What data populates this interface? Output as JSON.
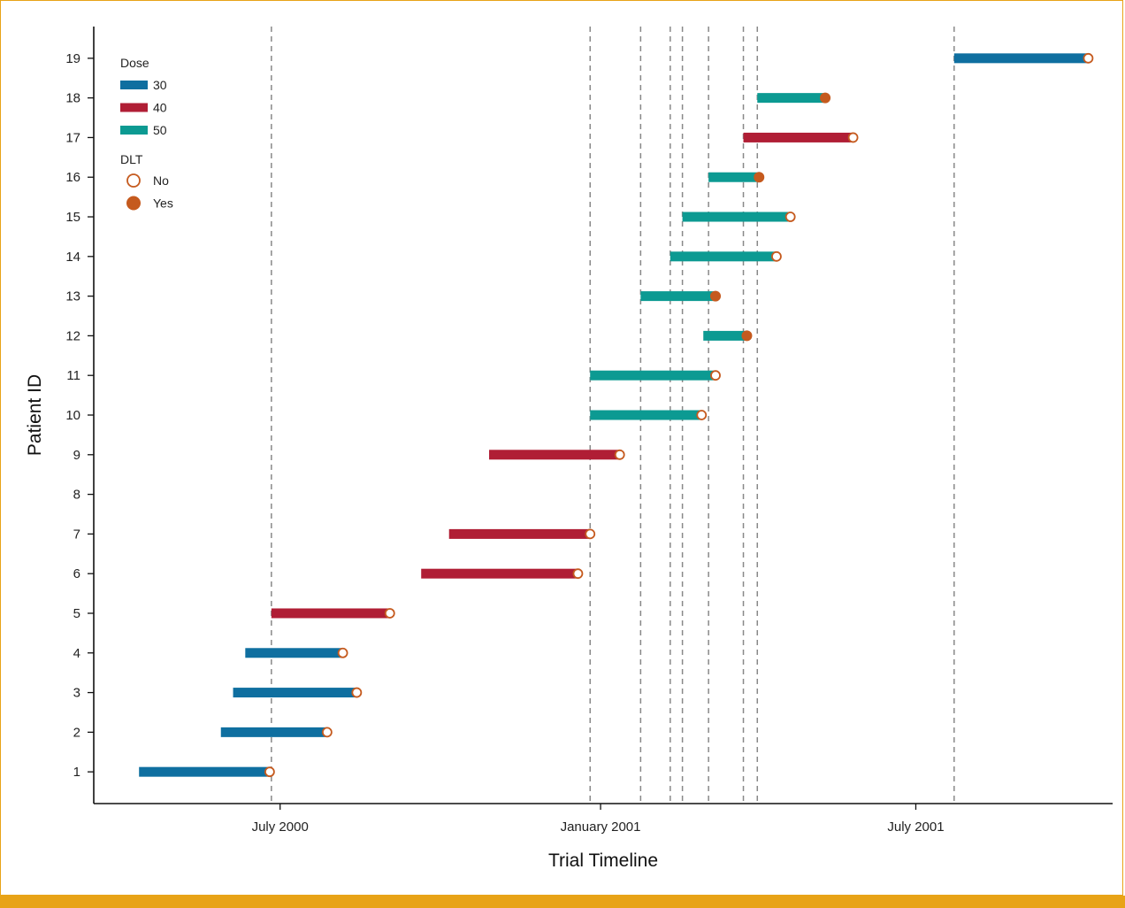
{
  "colors": {
    "frame": "#e8a317",
    "band": "#e8a317",
    "dose_30": "#0f6fa0",
    "dose_40": "#b01e35",
    "dose_50": "#0c9a92",
    "dlt_marker": "#c55a1e",
    "grid": "#888888"
  },
  "chart_data": {
    "type": "timeline",
    "xlabel": "Trial Timeline",
    "ylabel": "Patient ID",
    "x_ticks": [
      "July 2000",
      "January 2001",
      "July 2001"
    ],
    "x_tick_dates": [
      "2000-07-01",
      "2001-01-01",
      "2001-07-01"
    ],
    "xlim": [
      "2000-03-16",
      "2001-10-22"
    ],
    "ylim": [
      0.2,
      19.8
    ],
    "y_ticks": [
      "1",
      "2",
      "3",
      "4",
      "5",
      "6",
      "7",
      "8",
      "9",
      "10",
      "11",
      "12",
      "13",
      "14",
      "15",
      "16",
      "17",
      "18",
      "19"
    ],
    "vertical_reference_lines": [
      "2000-06-26",
      "2000-12-26",
      "2001-01-24",
      "2001-02-10",
      "2001-02-17",
      "2001-03-04",
      "2001-03-24",
      "2001-04-01",
      "2001-07-23"
    ],
    "legend": {
      "dose_title": "Dose",
      "dose_entries": [
        "30",
        "40",
        "50"
      ],
      "dlt_title": "DLT",
      "dlt_entries": [
        "No",
        "Yes"
      ],
      "placement": "top-left"
    },
    "patients": [
      {
        "id": "1",
        "dose": "30",
        "start": "2000-04-11",
        "end": "2000-06-25",
        "dlt": "No"
      },
      {
        "id": "2",
        "dose": "30",
        "start": "2000-05-28",
        "end": "2000-07-28",
        "dlt": "No"
      },
      {
        "id": "3",
        "dose": "30",
        "start": "2000-06-04",
        "end": "2000-08-14",
        "dlt": "No"
      },
      {
        "id": "4",
        "dose": "30",
        "start": "2000-06-11",
        "end": "2000-08-06",
        "dlt": "No"
      },
      {
        "id": "5",
        "dose": "40",
        "start": "2000-06-26",
        "end": "2000-09-02",
        "dlt": "No"
      },
      {
        "id": "6",
        "dose": "40",
        "start": "2000-09-20",
        "end": "2000-12-19",
        "dlt": "No"
      },
      {
        "id": "7",
        "dose": "40",
        "start": "2000-10-06",
        "end": "2000-12-26",
        "dlt": "No"
      },
      {
        "id": "8",
        "dose": "",
        "start": "",
        "end": "",
        "dlt": ""
      },
      {
        "id": "9",
        "dose": "40",
        "start": "2000-10-29",
        "end": "2001-01-12",
        "dlt": "No"
      },
      {
        "id": "10",
        "dose": "50",
        "start": "2000-12-26",
        "end": "2001-02-28",
        "dlt": "No"
      },
      {
        "id": "11",
        "dose": "50",
        "start": "2000-12-26",
        "end": "2001-03-08",
        "dlt": "No"
      },
      {
        "id": "12",
        "dose": "50",
        "start": "2001-03-01",
        "end": "2001-03-26",
        "dlt": "Yes"
      },
      {
        "id": "13",
        "dose": "50",
        "start": "2001-01-24",
        "end": "2001-03-08",
        "dlt": "Yes"
      },
      {
        "id": "14",
        "dose": "50",
        "start": "2001-02-10",
        "end": "2001-04-12",
        "dlt": "No"
      },
      {
        "id": "15",
        "dose": "50",
        "start": "2001-02-17",
        "end": "2001-04-20",
        "dlt": "No"
      },
      {
        "id": "16",
        "dose": "50",
        "start": "2001-03-04",
        "end": "2001-04-02",
        "dlt": "Yes"
      },
      {
        "id": "17",
        "dose": "40",
        "start": "2001-03-24",
        "end": "2001-05-26",
        "dlt": "No"
      },
      {
        "id": "18",
        "dose": "50",
        "start": "2001-04-01",
        "end": "2001-05-10",
        "dlt": "Yes"
      },
      {
        "id": "19",
        "dose": "30",
        "start": "2001-07-23",
        "end": "2001-10-08",
        "dlt": "No"
      }
    ]
  }
}
